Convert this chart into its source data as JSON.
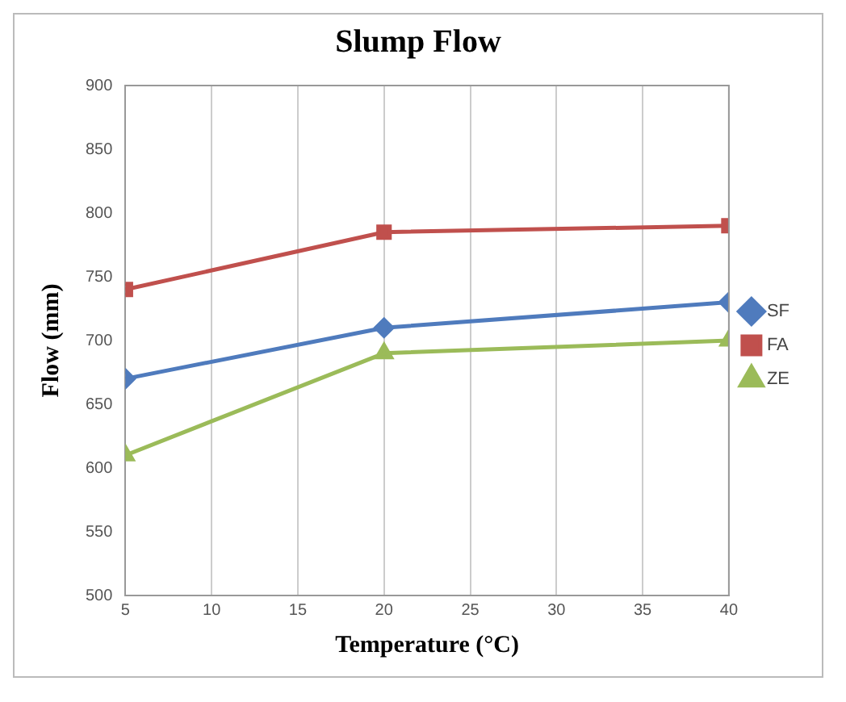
{
  "chart_data": {
    "type": "line",
    "title": "Slump Flow",
    "xlabel": "Temperature (°C)",
    "ylabel": "Flow (mm)",
    "x": [
      5,
      20,
      40
    ],
    "series": [
      {
        "name": "SF",
        "color": "#4f7bbd",
        "values": [
          670,
          710,
          730
        ],
        "marker": "diamond"
      },
      {
        "name": "FA",
        "color": "#c0504d",
        "values": [
          740,
          785,
          790
        ],
        "marker": "square"
      },
      {
        "name": "ZE",
        "color": "#9bbb59",
        "values": [
          610,
          690,
          700
        ],
        "marker": "triangle"
      }
    ],
    "xlim": [
      5,
      40
    ],
    "xticks": [
      5,
      10,
      15,
      20,
      25,
      30,
      35,
      40
    ],
    "ylim": [
      500,
      900
    ],
    "yticks": [
      500,
      550,
      600,
      650,
      700,
      750,
      800,
      850,
      900
    ],
    "grid": "x",
    "legend": "right"
  }
}
